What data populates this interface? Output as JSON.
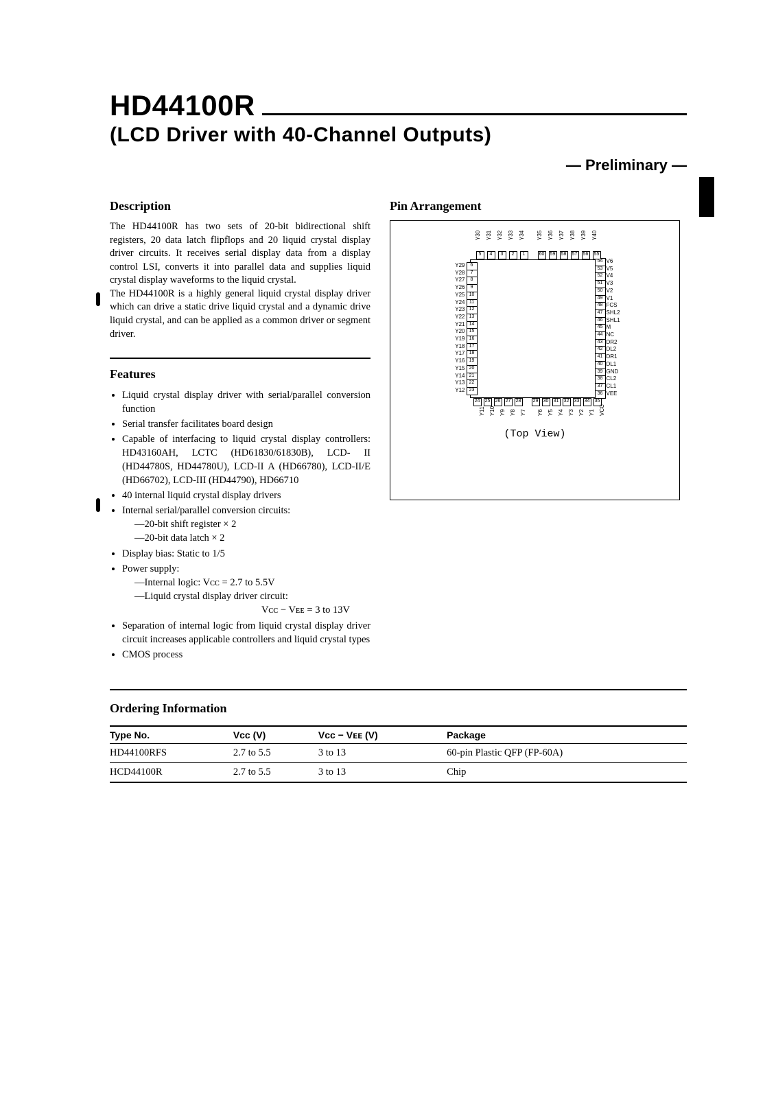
{
  "header": {
    "part_no": "HD44100R",
    "subtitle": "(LCD Driver with 40-Channel Outputs)",
    "preliminary": "— Preliminary —"
  },
  "description": {
    "heading": "Description",
    "para1": "The HD44100R has two sets of 20-bit bidirectional shift registers, 20 data latch flipflops and 20 liquid crystal display driver circuits. It receives serial display data from a display control LSI, converts it into parallel data and supplies liquid crystal display waveforms to the liquid crystal.",
    "para2": "The HD44100R is a highly general liquid crystal display driver which can drive a static drive liquid crystal and a dynamic drive liquid crystal, and can be applied as a common driver or segment driver."
  },
  "features": {
    "heading": "Features",
    "items": [
      "Liquid crystal display driver with serial/parallel conversion function",
      "Serial transfer facilitates board design",
      "Capable of interfacing to liquid crystal display controllers: HD43160AH, LCTC (HD61830/61830B), LCD- II (HD44780S, HD44780U), LCD-II A (HD66780), LCD-II/E (HD66702), LCD-III (HD44790), HD66710",
      "40 internal liquid crystal display drivers",
      "Internal serial/parallel conversion circuits:",
      "Display bias: Static to 1/5",
      "Power supply:",
      "Separation of internal logic from liquid crystal display driver circuit increases applicable controllers and liquid crystal types",
      "CMOS process"
    ],
    "sub_conversion": [
      "—20-bit shift register × 2",
      "—20-bit data latch × 2"
    ],
    "sub_power": [
      "—Internal logic: Vᴄᴄ = 2.7 to 5.5V",
      "—Liquid crystal display driver circuit:",
      "Vᴄᴄ − Vᴇᴇ = 3 to 13V"
    ]
  },
  "pin": {
    "heading": "Pin Arrangement",
    "top_view": "(Top View)",
    "left_pins": [
      {
        "n": "6",
        "s": "Y29"
      },
      {
        "n": "7",
        "s": "Y28"
      },
      {
        "n": "8",
        "s": "Y27"
      },
      {
        "n": "9",
        "s": "Y26"
      },
      {
        "n": "10",
        "s": "Y25"
      },
      {
        "n": "11",
        "s": "Y24"
      },
      {
        "n": "12",
        "s": "Y23"
      },
      {
        "n": "13",
        "s": "Y22"
      },
      {
        "n": "14",
        "s": "Y21"
      },
      {
        "n": "15",
        "s": "Y20"
      },
      {
        "n": "16",
        "s": "Y19"
      },
      {
        "n": "17",
        "s": "Y18"
      },
      {
        "n": "18",
        "s": "Y17"
      },
      {
        "n": "19",
        "s": "Y16"
      },
      {
        "n": "20",
        "s": "Y15"
      },
      {
        "n": "21",
        "s": "Y14"
      },
      {
        "n": "22",
        "s": "Y13"
      },
      {
        "n": "23",
        "s": "Y12"
      }
    ],
    "right_pins": [
      {
        "n": "54",
        "s": "V6"
      },
      {
        "n": "53",
        "s": "V5"
      },
      {
        "n": "52",
        "s": "V4"
      },
      {
        "n": "51",
        "s": "V3"
      },
      {
        "n": "50",
        "s": "V2"
      },
      {
        "n": "49",
        "s": "V1"
      },
      {
        "n": "48",
        "s": "FCS"
      },
      {
        "n": "47",
        "s": "SHL2"
      },
      {
        "n": "46",
        "s": "SHL1"
      },
      {
        "n": "45",
        "s": "M"
      },
      {
        "n": "44",
        "s": "NC"
      },
      {
        "n": "43",
        "s": "DR2"
      },
      {
        "n": "42",
        "s": "DL2"
      },
      {
        "n": "41",
        "s": "DR1"
      },
      {
        "n": "40",
        "s": "DL1"
      },
      {
        "n": "39",
        "s": "GND"
      },
      {
        "n": "38",
        "s": "CL2"
      },
      {
        "n": "37",
        "s": "CL1"
      },
      {
        "n": "36",
        "s": "VEE"
      }
    ],
    "top_pins": [
      {
        "n": "5",
        "s": "Y30"
      },
      {
        "n": "4",
        "s": "Y31"
      },
      {
        "n": "3",
        "s": "Y32"
      },
      {
        "n": "2",
        "s": "Y33"
      },
      {
        "n": "1",
        "s": "Y34"
      },
      {
        "n": "60",
        "s": "Y35"
      },
      {
        "n": "59",
        "s": "Y36"
      },
      {
        "n": "58",
        "s": "Y37"
      },
      {
        "n": "57",
        "s": "Y38"
      },
      {
        "n": "56",
        "s": "Y39"
      },
      {
        "n": "55",
        "s": "Y40"
      }
    ],
    "bottom_pins": [
      {
        "n": "24",
        "s": "Y11"
      },
      {
        "n": "25",
        "s": "Y10"
      },
      {
        "n": "26",
        "s": "Y9"
      },
      {
        "n": "27",
        "s": "Y8"
      },
      {
        "n": "28",
        "s": "Y7"
      },
      {
        "n": "29",
        "s": "Y6"
      },
      {
        "n": "30",
        "s": "Y5"
      },
      {
        "n": "31",
        "s": "Y4"
      },
      {
        "n": "32",
        "s": "Y3"
      },
      {
        "n": "33",
        "s": "Y2"
      },
      {
        "n": "34",
        "s": "Y1"
      },
      {
        "n": "35",
        "s": "VCC"
      }
    ]
  },
  "ordering": {
    "heading": "Ordering Information",
    "columns": [
      "Type No.",
      "Vᴄᴄ (V)",
      "Vᴄᴄ − Vᴇᴇ (V)",
      "Package"
    ],
    "rows": [
      [
        "HD44100RFS",
        "2.7 to 5.5",
        "3 to 13",
        "60-pin Plastic QFP (FP-60A)"
      ],
      [
        "HCD44100R",
        "2.7 to 5.5",
        "3 to 13",
        "Chip"
      ]
    ]
  }
}
